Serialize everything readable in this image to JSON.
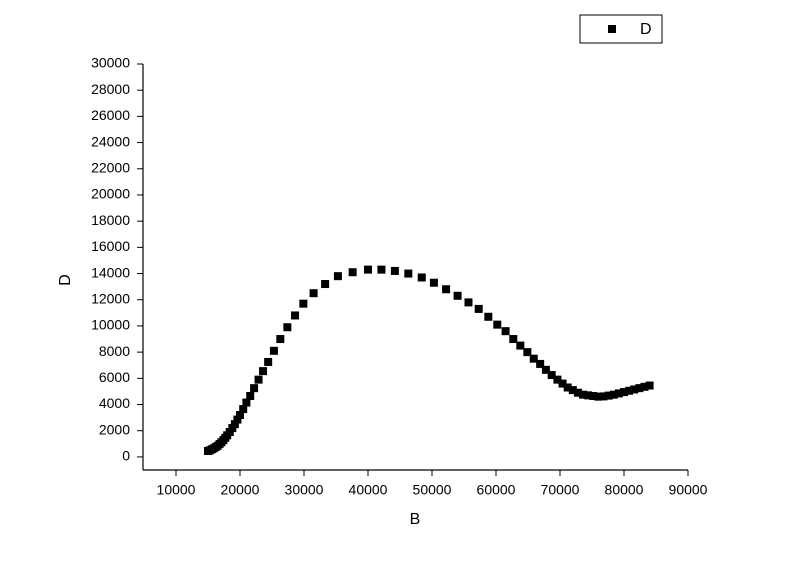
{
  "chart_data": {
    "type": "scatter",
    "x_label": "B",
    "y_label": "D",
    "x": [
      15000,
      15300,
      15600,
      15900,
      16200,
      16500,
      16800,
      17100,
      17400,
      17700,
      18000,
      18400,
      18800,
      19200,
      19600,
      20000,
      20500,
      21000,
      21600,
      22200,
      22900,
      23600,
      24400,
      25300,
      26300,
      27400,
      28600,
      29900,
      31500,
      33300,
      35300,
      37600,
      40000,
      42100,
      44200,
      46300,
      48400,
      50300,
      52200,
      54000,
      55700,
      57300,
      58800,
      60200,
      61500,
      62700,
      63800,
      64900,
      65900,
      66900,
      67800,
      68700,
      69600,
      70400,
      71200,
      72000,
      72800,
      73600,
      74400,
      75200,
      76000,
      76800,
      77600,
      78400,
      79200,
      80000,
      80800,
      81600,
      82400,
      83200,
      84000
    ],
    "series": [
      {
        "name": "D",
        "color": "#000000",
        "values": [
          450,
          500,
          580,
          650,
          750,
          850,
          980,
          1120,
          1280,
          1460,
          1650,
          1900,
          2200,
          2500,
          2850,
          3200,
          3650,
          4150,
          4650,
          5250,
          5900,
          6550,
          7250,
          8100,
          9000,
          9900,
          10800,
          11700,
          12500,
          13200,
          13800,
          14100,
          14300,
          14300,
          14200,
          14000,
          13700,
          13300,
          12800,
          12300,
          11800,
          11300,
          10700,
          10100,
          9600,
          9000,
          8500,
          8000,
          7500,
          7100,
          6650,
          6250,
          5900,
          5600,
          5300,
          5100,
          4900,
          4750,
          4700,
          4650,
          4600,
          4620,
          4680,
          4750,
          4850,
          4950,
          5050,
          5150,
          5250,
          5350,
          5450
        ]
      }
    ],
    "xlim": [
      5000,
      90000
    ],
    "xticks": [
      10000,
      20000,
      30000,
      40000,
      50000,
      60000,
      70000,
      80000,
      90000
    ],
    "ylim": [
      -1000,
      30000
    ],
    "yticks": [
      0,
      2000,
      4000,
      6000,
      8000,
      10000,
      12000,
      14000,
      16000,
      18000,
      20000,
      22000,
      24000,
      26000,
      28000,
      30000
    ],
    "legend": "top-right"
  }
}
